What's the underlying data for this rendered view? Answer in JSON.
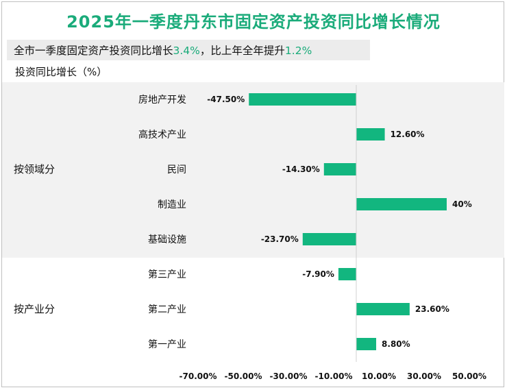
{
  "page": {
    "title": "2025年一季度丹东市固定资产投资同比增长情况",
    "subtitle_prefix": "全市一季度固定资产投资同比增长",
    "subtitle_value1": "3.4%",
    "subtitle_middle": "，比上年全年提升",
    "subtitle_value2": "1.2%",
    "unit_label": "投资同比增长（%）"
  },
  "colors": {
    "bar": "#12b67f",
    "title": "#1aab7a",
    "band": "#f2f2f2"
  },
  "chart_data": {
    "type": "bar",
    "orientation": "horizontal",
    "groups": [
      {
        "label": "按领域分",
        "shaded": true,
        "items": [
          {
            "category": "房地产开发",
            "value": -47.5,
            "value_label": "-47.50%"
          },
          {
            "category": "高技术产业",
            "value": 12.6,
            "value_label": "12.60%"
          },
          {
            "category": "民间",
            "value": -14.3,
            "value_label": "-14.30%"
          },
          {
            "category": "制造业",
            "value": 40,
            "value_label": "40%"
          },
          {
            "category": "基础设施",
            "value": -23.7,
            "value_label": "-23.70%"
          }
        ]
      },
      {
        "label": "按产业分",
        "shaded": false,
        "items": [
          {
            "category": "第三产业",
            "value": -7.9,
            "value_label": "-7.90%"
          },
          {
            "category": "第二产业",
            "value": 23.6,
            "value_label": "23.60%"
          },
          {
            "category": "第一产业",
            "value": 8.8,
            "value_label": "8.80%"
          }
        ]
      }
    ],
    "xlim": [
      -70,
      50
    ],
    "xticks": [
      -70,
      -50,
      -30,
      -10,
      10,
      30,
      50
    ],
    "xtick_labels": [
      "-70.00%",
      "-50.00%",
      "-30.00%",
      "-10.00%",
      "10.00%",
      "30.00%",
      "50.00%"
    ],
    "grid": false,
    "legend": "none"
  }
}
